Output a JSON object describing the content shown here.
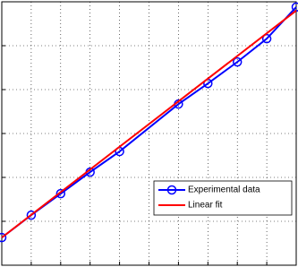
{
  "chart_data": {
    "type": "line",
    "series": [
      {
        "name": "Experimental data",
        "color": "#0000ff",
        "marker": "circle",
        "x": [
          0,
          1,
          2,
          3,
          4,
          6,
          7,
          8,
          9,
          10
        ],
        "values": [
          0.63,
          1.14,
          1.63,
          2.12,
          2.59,
          3.67,
          4.14,
          4.63,
          5.16,
          5.88
        ]
      },
      {
        "name": "Linear fit",
        "color": "#ff0000",
        "marker": "none",
        "x": [
          0,
          10
        ],
        "values": [
          0.63,
          5.8
        ]
      }
    ],
    "xlim": [
      0,
      10
    ],
    "ylim": [
      0,
      6
    ],
    "xticks": [
      1,
      2,
      3,
      4,
      5,
      6,
      7,
      8,
      9
    ],
    "yticks": [
      1,
      2,
      3,
      4,
      5
    ],
    "grid": true,
    "legend": "lower right"
  }
}
